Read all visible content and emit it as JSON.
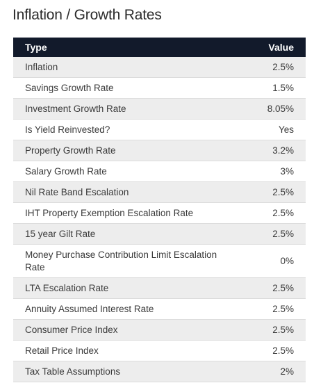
{
  "page": {
    "title": "Inflation / Growth Rates"
  },
  "table": {
    "headers": {
      "type": "Type",
      "value": "Value"
    },
    "rows": [
      {
        "type": "Inflation",
        "value": "2.5%"
      },
      {
        "type": "Savings Growth Rate",
        "value": "1.5%"
      },
      {
        "type": "Investment Growth Rate",
        "value": "8.05%"
      },
      {
        "type": "Is Yield Reinvested?",
        "value": "Yes"
      },
      {
        "type": "Property Growth Rate",
        "value": "3.2%"
      },
      {
        "type": "Salary Growth Rate",
        "value": "3%"
      },
      {
        "type": "Nil Rate Band Escalation",
        "value": "2.5%"
      },
      {
        "type": "IHT Property Exemption Escalation Rate",
        "value": "2.5%"
      },
      {
        "type": "15 year Gilt Rate",
        "value": "2.5%"
      },
      {
        "type": "Money Purchase Contribution Limit Escalation Rate",
        "value": "0%"
      },
      {
        "type": "LTA Escalation Rate",
        "value": "2.5%"
      },
      {
        "type": "Annuity Assumed Interest Rate",
        "value": "2.5%"
      },
      {
        "type": "Consumer Price Index",
        "value": "2.5%"
      },
      {
        "type": "Retail Price Index",
        "value": "2.5%"
      },
      {
        "type": "Tax Table Assumptions",
        "value": "2%"
      }
    ]
  },
  "colors": {
    "header_bg": "#121a2b",
    "row_alt_bg": "#ededed"
  }
}
